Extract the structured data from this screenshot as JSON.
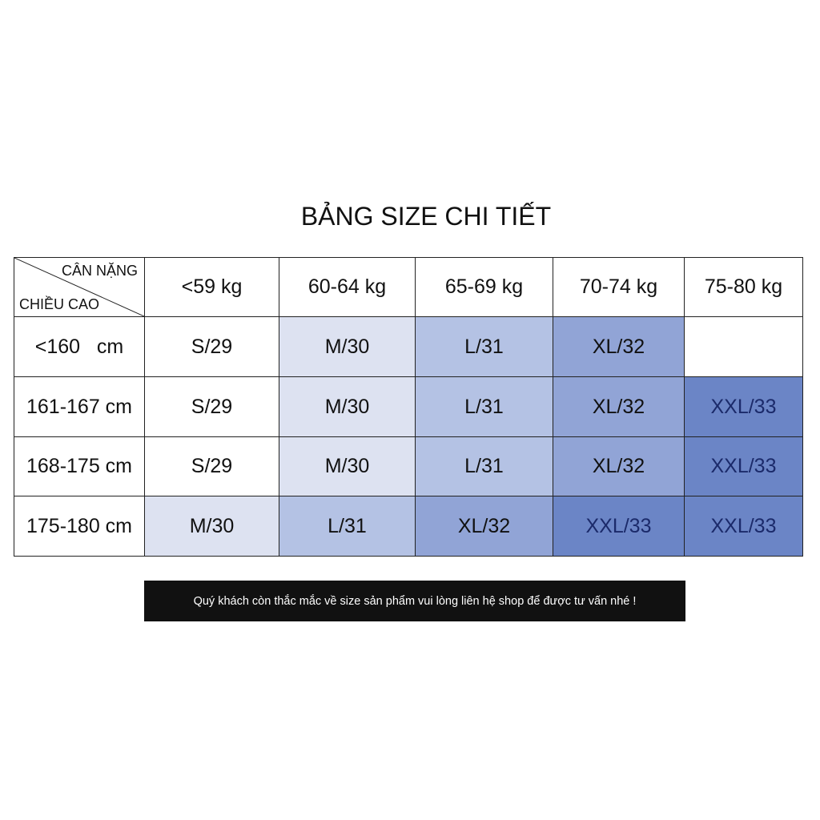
{
  "header": {
    "title": "BẢNG SIZE CHI TIẾT"
  },
  "table": {
    "corner": {
      "top": "CÂN NẶNG",
      "bottom": "CHIỀU CAO"
    },
    "columns": [
      "<59 kg",
      "60-64 kg",
      "65-69 kg",
      "70-74 kg",
      "75-80 kg"
    ],
    "row_labels": [
      "<160   cm",
      "161-167 cm",
      "168-175 cm",
      "175-180 cm"
    ],
    "rows": [
      [
        "S/29",
        "M/30",
        "L/31",
        "XL/32",
        null
      ],
      [
        "S/29",
        "M/30",
        "L/31",
        "XL/32",
        "XXL/33"
      ],
      [
        "S/29",
        "M/30",
        "L/31",
        "XL/32",
        "XXL/33"
      ],
      [
        "M/30",
        "L/31",
        "XL/32",
        "XXL/33",
        "XXL/33"
      ]
    ]
  },
  "footer": {
    "note": "Quý khách còn thắc mắc về size sản phẩm vui lòng liên hệ shop để được tư vấn nhé !"
  }
}
